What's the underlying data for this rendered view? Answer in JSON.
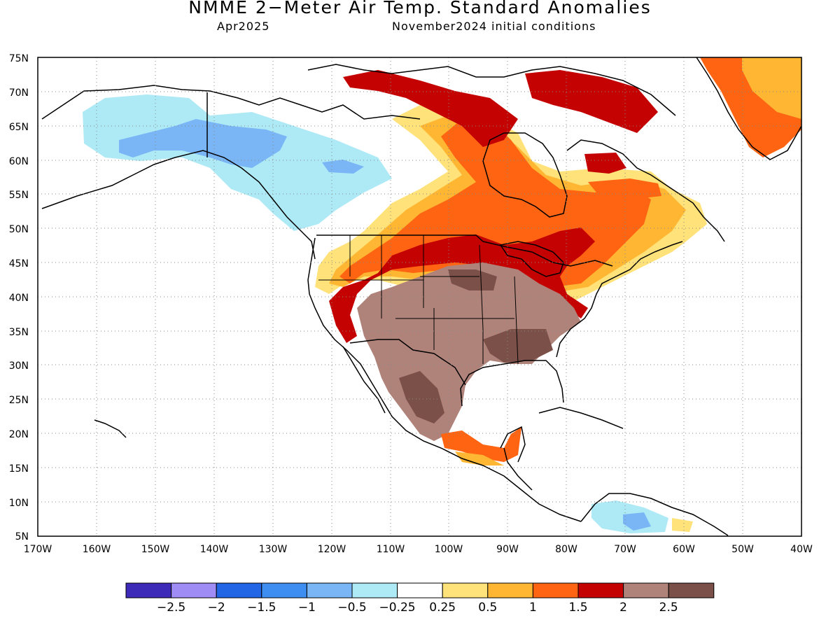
{
  "header": {
    "title": "NMME 2−Meter Air Temp. Standard Anomalies",
    "target_month": "Apr2025",
    "initial_conditions": "November2024 initial conditions"
  },
  "map": {
    "lat_labels": [
      "75N",
      "70N",
      "65N",
      "60N",
      "55N",
      "50N",
      "45N",
      "40N",
      "35N",
      "30N",
      "25N",
      "20N",
      "15N",
      "10N",
      "5N"
    ],
    "lon_labels": [
      "170W",
      "160W",
      "150W",
      "140W",
      "130W",
      "120W",
      "110W",
      "100W",
      "90W",
      "80W",
      "70W",
      "60W",
      "50W",
      "40W"
    ]
  },
  "colorbar": {
    "colors": [
      "#3d2ab8",
      "#a08cf5",
      "#2266e6",
      "#3e8ef2",
      "#7ab6f6",
      "#aeeaf6",
      "#ffffff",
      "#ffe27a",
      "#ffb733",
      "#ff6412",
      "#c40202",
      "#b0837a",
      "#7a5048"
    ],
    "labels": [
      "−2.5",
      "−2",
      "−1.5",
      "−1",
      "−0.5",
      "−0.25",
      "0.25",
      "0.5",
      "1",
      "1.5",
      "2",
      "2.5"
    ]
  }
}
